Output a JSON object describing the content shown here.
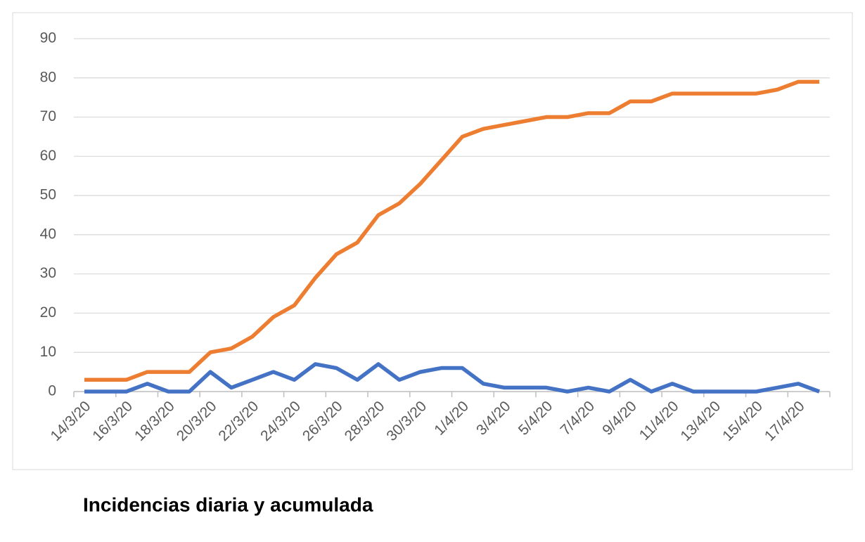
{
  "chart_data": {
    "type": "line",
    "title": "Incidencias diaria y acumulada",
    "categories": [
      "14/3/20",
      null,
      "16/3/20",
      null,
      "18/3/20",
      null,
      "20/3/20",
      null,
      "22/3/20",
      null,
      "24/3/20",
      null,
      "26/3/20",
      null,
      "28/3/20",
      null,
      "30/3/20",
      null,
      "1/4/20",
      null,
      "3/4/20",
      null,
      "5/4/20",
      null,
      "7/4/20",
      null,
      "9/4/20",
      null,
      "11/4/20",
      null,
      "13/4/20",
      null,
      "15/4/20",
      null,
      "17/4/20",
      null
    ],
    "series": [
      {
        "color": "#4472c4",
        "values": [
          0,
          0,
          0,
          2,
          0,
          0,
          5,
          1,
          3,
          5,
          3,
          7,
          6,
          3,
          7,
          3,
          5,
          6,
          6,
          2,
          1,
          1,
          1,
          0,
          1,
          0,
          3,
          0,
          2,
          0,
          0,
          0,
          0,
          1,
          2,
          0
        ]
      },
      {
        "color": "#ed7d31",
        "values": [
          3,
          3,
          3,
          5,
          5,
          5,
          10,
          11,
          14,
          19,
          22,
          29,
          35,
          38,
          45,
          48,
          53,
          59,
          65,
          67,
          68,
          69,
          70,
          70,
          71,
          71,
          74,
          74,
          76,
          76,
          76,
          76,
          76,
          77,
          79,
          79
        ]
      }
    ],
    "ylim": [
      0,
      90
    ],
    "yticks": [
      0,
      10,
      20,
      30,
      40,
      50,
      60,
      70,
      80,
      90
    ],
    "grid": true
  }
}
